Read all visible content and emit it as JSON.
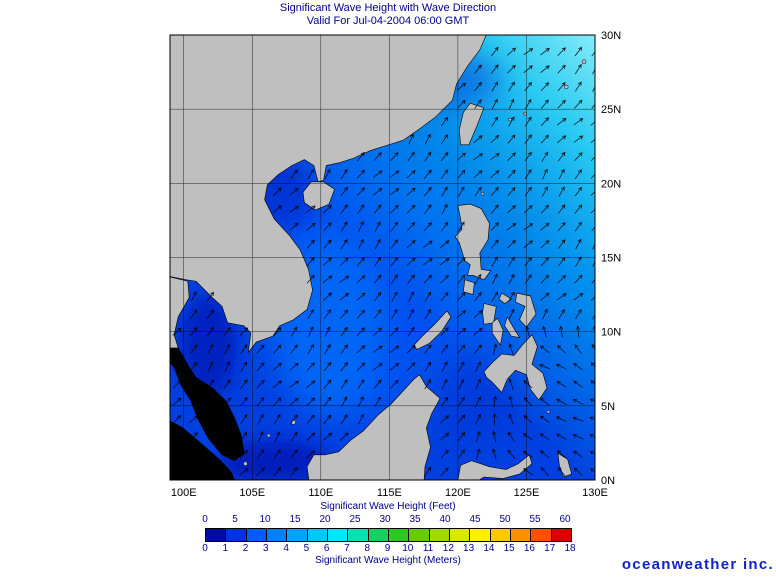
{
  "title": {
    "line1": "Significant Wave Height with Wave Direction",
    "line2": "Valid For Jul-04-2004 06:00 GMT"
  },
  "axes": {
    "lon_labels": [
      "100E",
      "105E",
      "110E",
      "115E",
      "120E",
      "125E",
      "130E"
    ],
    "lat_labels": [
      "30N",
      "25N",
      "20N",
      "15N",
      "10N",
      "5N",
      "0N"
    ]
  },
  "colorbar": {
    "feet_title": "Significant Wave Height (Feet)",
    "meters_title": "Significant Wave Height (Meters)",
    "feet_ticks": [
      "0",
      "5",
      "10",
      "15",
      "20",
      "25",
      "30",
      "35",
      "40",
      "45",
      "50",
      "55",
      "60"
    ],
    "meter_ticks": [
      "0",
      "1",
      "2",
      "3",
      "4",
      "5",
      "6",
      "7",
      "8",
      "9",
      "10",
      "11",
      "12",
      "13",
      "14",
      "15",
      "16",
      "17",
      "18"
    ],
    "segment_colors": [
      "#000c9e",
      "#0033e0",
      "#005cff",
      "#0080ff",
      "#00a4ff",
      "#00c8ff",
      "#00e8ff",
      "#0ce0b0",
      "#16d060",
      "#2cc825",
      "#66cc00",
      "#a0d800",
      "#d8e800",
      "#fff000",
      "#ffc800",
      "#ff9000",
      "#ff5000",
      "#d80000"
    ]
  },
  "logo": {
    "text": "oceanweather inc."
  },
  "colors": {
    "title_text": "#00008b",
    "axis_text": "#000000",
    "colorbar_text": "#00008b",
    "logo_blue": "#1122cc",
    "land_gray": "#bfbfbf",
    "land_black": "#000000",
    "coast_outline": "#000000",
    "ocean_base": "#0040e0",
    "ocean_bright": "#0080ff",
    "ocean_dark": "#0018b4",
    "pacific_cyan": "#5ae6f2",
    "arrow": "#000000",
    "grid": "#000000"
  }
}
